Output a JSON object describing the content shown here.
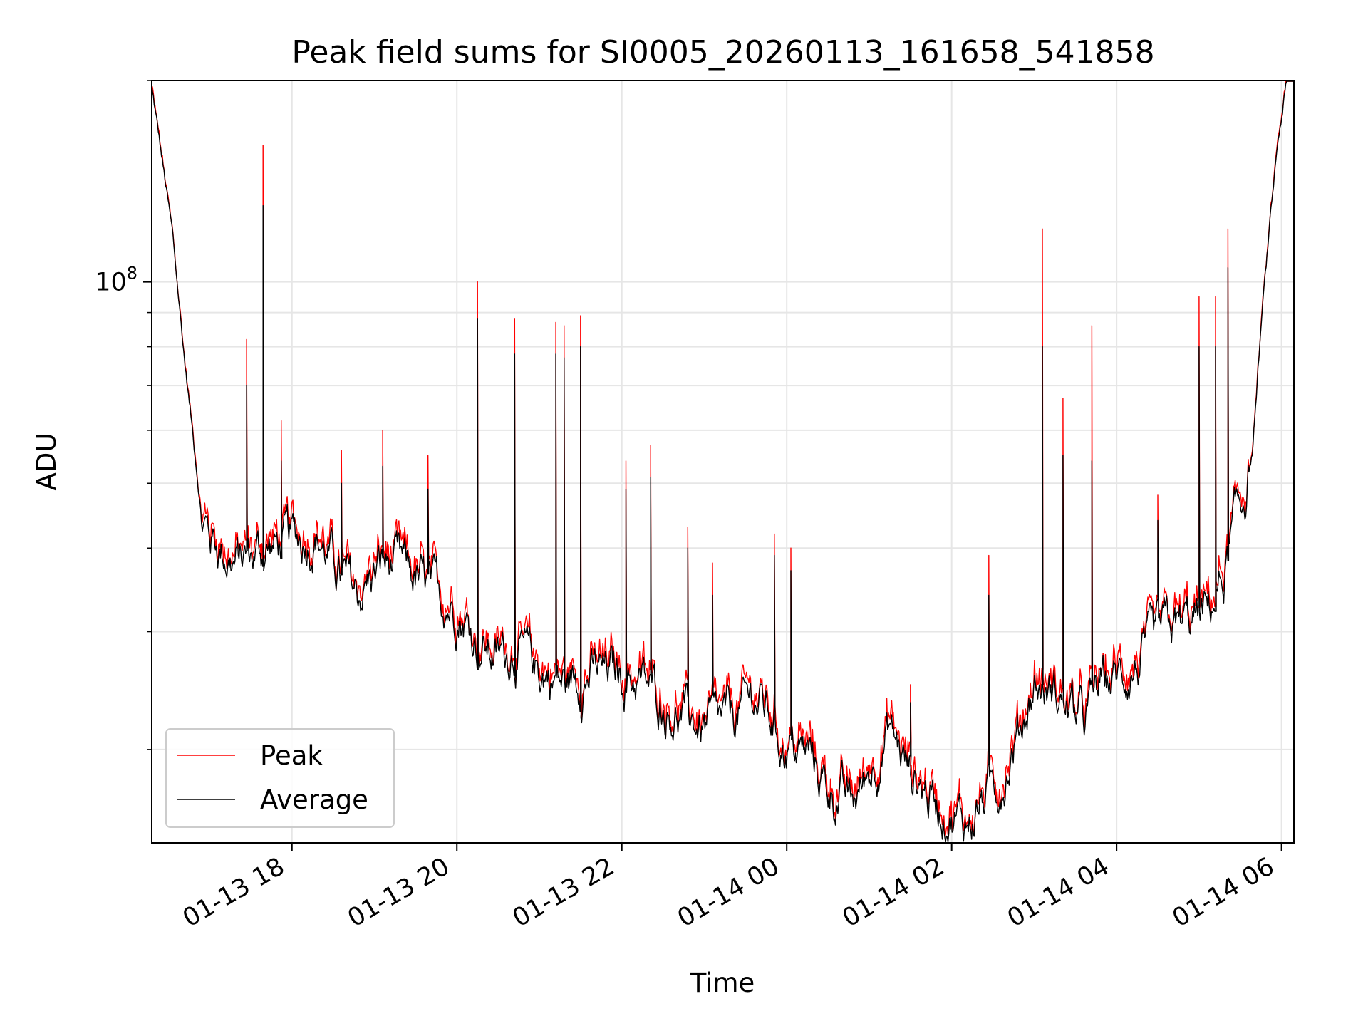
{
  "chart_data": {
    "type": "line",
    "title": "Peak field sums for SI0005_20260113_161658_541858",
    "xlabel": "Time",
    "ylabel": "ADU",
    "yscale": "log",
    "ylim": [
      14500000,
      200000000
    ],
    "xlim_hours": [
      16.3,
      30.15
    ],
    "grid": true,
    "legend_position": "lower-left",
    "x_tick_labels": [
      "01-13 18",
      "01-13 20",
      "01-13 22",
      "01-14 00",
      "01-14 02",
      "01-14 04",
      "01-14 06"
    ],
    "x_tick_hours": [
      18,
      20,
      22,
      24,
      26,
      28,
      30
    ],
    "y_major_tick": {
      "base": "10",
      "exponent": "8",
      "value": 100000000
    },
    "y_minor_ticks": [
      20000000,
      30000000,
      40000000,
      50000000,
      60000000,
      70000000,
      80000000,
      90000000,
      200000000
    ],
    "series": [
      {
        "name": "Peak",
        "color": "#ff0000"
      },
      {
        "name": "Average",
        "color": "#000000"
      }
    ],
    "baseline": {
      "x": [
        16.3,
        16.4,
        16.55,
        16.7,
        16.85,
        16.9,
        17.0,
        17.3,
        17.5,
        17.7,
        18.0,
        18.3,
        18.6,
        18.8,
        19.1,
        19.4,
        19.7,
        20.0,
        20.25,
        20.5,
        20.7,
        20.95,
        21.3,
        21.6,
        21.9,
        22.2,
        22.5,
        22.7,
        23.0,
        23.3,
        23.6,
        23.8,
        23.95,
        24.1,
        24.3,
        24.5,
        24.8,
        25.0,
        25.25,
        25.5,
        25.75,
        26.0,
        26.2,
        26.4,
        26.6,
        26.8,
        27.0,
        27.3,
        27.6,
        27.8,
        28.0,
        28.3,
        28.6,
        28.9,
        29.1,
        29.3,
        29.45,
        29.55,
        29.65,
        29.75,
        29.85,
        29.95,
        30.05,
        30.15
      ],
      "y": [
        195000000,
        160000000,
        118000000,
        76000000,
        52000000,
        45000000,
        42000000,
        38000000,
        39000000,
        40000000,
        41000000,
        42000000,
        36000000,
        34000000,
        38000000,
        37000000,
        34000000,
        33000000,
        29000000,
        27500000,
        28500000,
        26500000,
        25000000,
        26000000,
        26000000,
        25500000,
        23500000,
        22500000,
        21500000,
        22000000,
        24000000,
        22500000,
        20500000,
        20000000,
        19500000,
        17500000,
        16500000,
        18500000,
        21500000,
        18500000,
        17000000,
        16000000,
        15500000,
        17000000,
        18000000,
        21000000,
        25000000,
        24000000,
        22000000,
        25000000,
        25500000,
        27000000,
        30000000,
        31000000,
        32000000,
        36000000,
        44000000,
        48000000,
        56000000,
        85000000,
        118000000,
        160000000,
        195000000,
        200000000
      ]
    },
    "spikes": {
      "x": [
        17.45,
        17.65,
        17.87,
        18.6,
        19.1,
        19.65,
        20.25,
        20.7,
        21.2,
        21.3,
        21.5,
        22.05,
        22.35,
        22.8,
        23.1,
        23.85,
        24.05,
        25.5,
        26.45,
        27.1,
        27.35,
        27.7,
        28.5,
        29.0,
        29.2,
        29.35
      ],
      "peak": [
        82000000,
        160000000,
        62000000,
        56000000,
        60000000,
        55000000,
        100000000,
        88000000,
        87000000,
        86000000,
        89000000,
        54000000,
        57000000,
        43000000,
        38000000,
        42000000,
        40000000,
        25000000,
        39000000,
        120000000,
        67000000,
        86000000,
        48000000,
        95000000,
        95000000,
        120000000
      ],
      "avg": [
        70000000,
        130000000,
        54000000,
        50000000,
        53000000,
        49000000,
        88000000,
        78000000,
        78000000,
        77000000,
        80000000,
        49000000,
        51000000,
        40000000,
        34000000,
        39000000,
        37000000,
        23500000,
        34000000,
        80000000,
        55000000,
        54000000,
        44000000,
        80000000,
        80000000,
        105000000
      ]
    }
  }
}
